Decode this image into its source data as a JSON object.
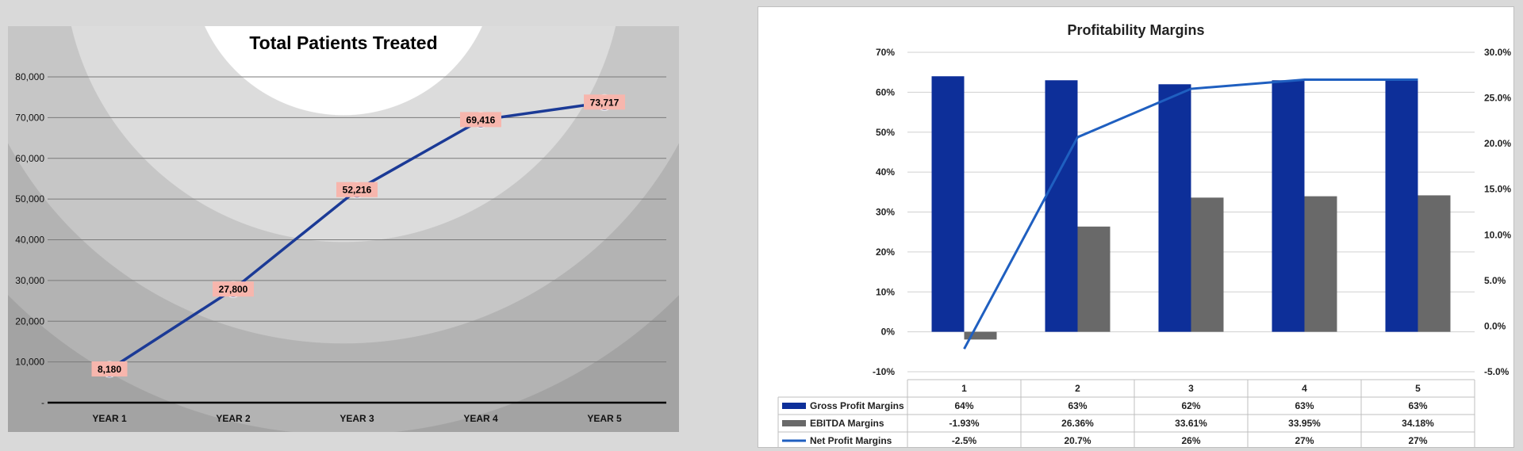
{
  "chart_data": [
    {
      "type": "line",
      "title": "Total Patients Treated",
      "categories": [
        "YEAR 1",
        "YEAR 2",
        "YEAR 3",
        "YEAR 4",
        "YEAR 5"
      ],
      "values": [
        8180,
        27800,
        52216,
        69416,
        73717
      ],
      "data_labels": [
        "8,180",
        "27,800",
        "52,216",
        "69,416",
        "73,717"
      ],
      "ylim": [
        0,
        80000
      ],
      "yticks": [
        0,
        10000,
        20000,
        30000,
        40000,
        50000,
        60000,
        70000,
        80000
      ],
      "ytick_labels": [
        "-",
        "10,000",
        "20,000",
        "30,000",
        "40,000",
        "50,000",
        "60,000",
        "70,000",
        "80,000"
      ],
      "grid": true,
      "colors": {
        "line": "#1b3a96",
        "marker": "#1b3a96",
        "label_bg": "#f7b6ad"
      }
    },
    {
      "type": "bar",
      "title": "Profitability Margins",
      "categories": [
        "1",
        "2",
        "3",
        "4",
        "5"
      ],
      "series": [
        {
          "name": "Gross Profit Margins",
          "type": "bar",
          "axis": "left",
          "values": [
            64,
            63,
            62,
            63,
            63
          ],
          "table_labels": [
            "64%",
            "63%",
            "62%",
            "63%",
            "63%"
          ],
          "color": "#0d2f99"
        },
        {
          "name": "EBITDA Margins",
          "type": "bar",
          "axis": "left",
          "values": [
            -1.93,
            26.36,
            33.61,
            33.95,
            34.18
          ],
          "table_labels": [
            "-1.93%",
            "26.36%",
            "33.61%",
            "33.95%",
            "34.18%"
          ],
          "color": "#696969"
        },
        {
          "name": "Net Profit Margins",
          "type": "line",
          "axis": "right",
          "values": [
            -2.5,
            20.7,
            26,
            27,
            27
          ],
          "table_labels": [
            "-2.5%",
            "20.7%",
            "26%",
            "27%",
            "27%"
          ],
          "color": "#1f5fc0"
        }
      ],
      "ylim_left": [
        -10,
        70
      ],
      "yticks_left": [
        -10,
        0,
        10,
        20,
        30,
        40,
        50,
        60,
        70
      ],
      "ytick_labels_left": [
        "-10%",
        "0%",
        "10%",
        "20%",
        "30%",
        "40%",
        "50%",
        "60%",
        "70%"
      ],
      "ylim_right": [
        -5,
        30
      ],
      "yticks_right": [
        -5,
        0,
        5,
        10,
        15,
        20,
        25,
        30
      ],
      "ytick_labels_right": [
        "-5.0%",
        "0.0%",
        "5.0%",
        "10.0%",
        "15.0%",
        "20.0%",
        "25.0%",
        "30.0%"
      ],
      "grid": true,
      "legend": "data-table"
    }
  ]
}
